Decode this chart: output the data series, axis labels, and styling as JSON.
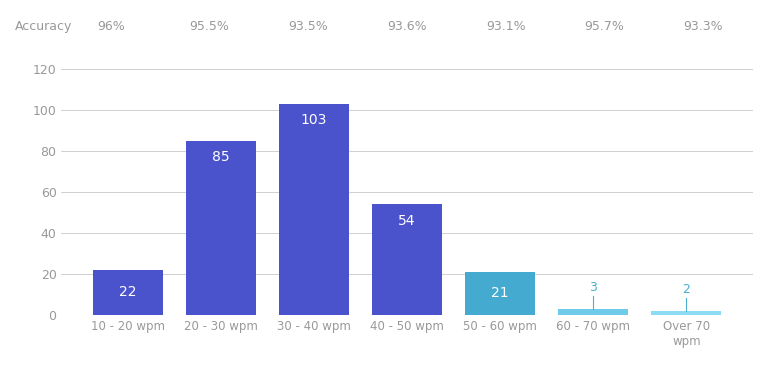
{
  "categories": [
    "10 - 20 wpm",
    "20 - 30 wpm",
    "30 - 40 wpm",
    "40 - 50 wpm",
    "50 - 60 wpm",
    "60 - 70 wpm",
    "Over 70\nwpm"
  ],
  "values": [
    22,
    85,
    103,
    54,
    21,
    3,
    2
  ],
  "bar_colors": [
    "#4a52cc",
    "#4a52cc",
    "#4a52cc",
    "#4a52cc",
    "#45aad0",
    "#6ecbea",
    "#8ddcf5"
  ],
  "accuracy_labels": [
    "96%",
    "95.5%",
    "93.5%",
    "93.6%",
    "93.1%",
    "95.7%",
    "93.3%"
  ],
  "accuracy_header": "Accuracy",
  "ylim": [
    0,
    120
  ],
  "yticks": [
    0,
    20,
    40,
    60,
    80,
    100,
    120
  ],
  "value_label_color_white": "#ffffff",
  "value_label_color_light": "#4aaecc",
  "background_color": "#ffffff",
  "grid_color": "#d0d0d0",
  "axis_text_color": "#999999",
  "top_text_color": "#999999",
  "figsize": [
    7.68,
    3.84
  ],
  "dpi": 100
}
